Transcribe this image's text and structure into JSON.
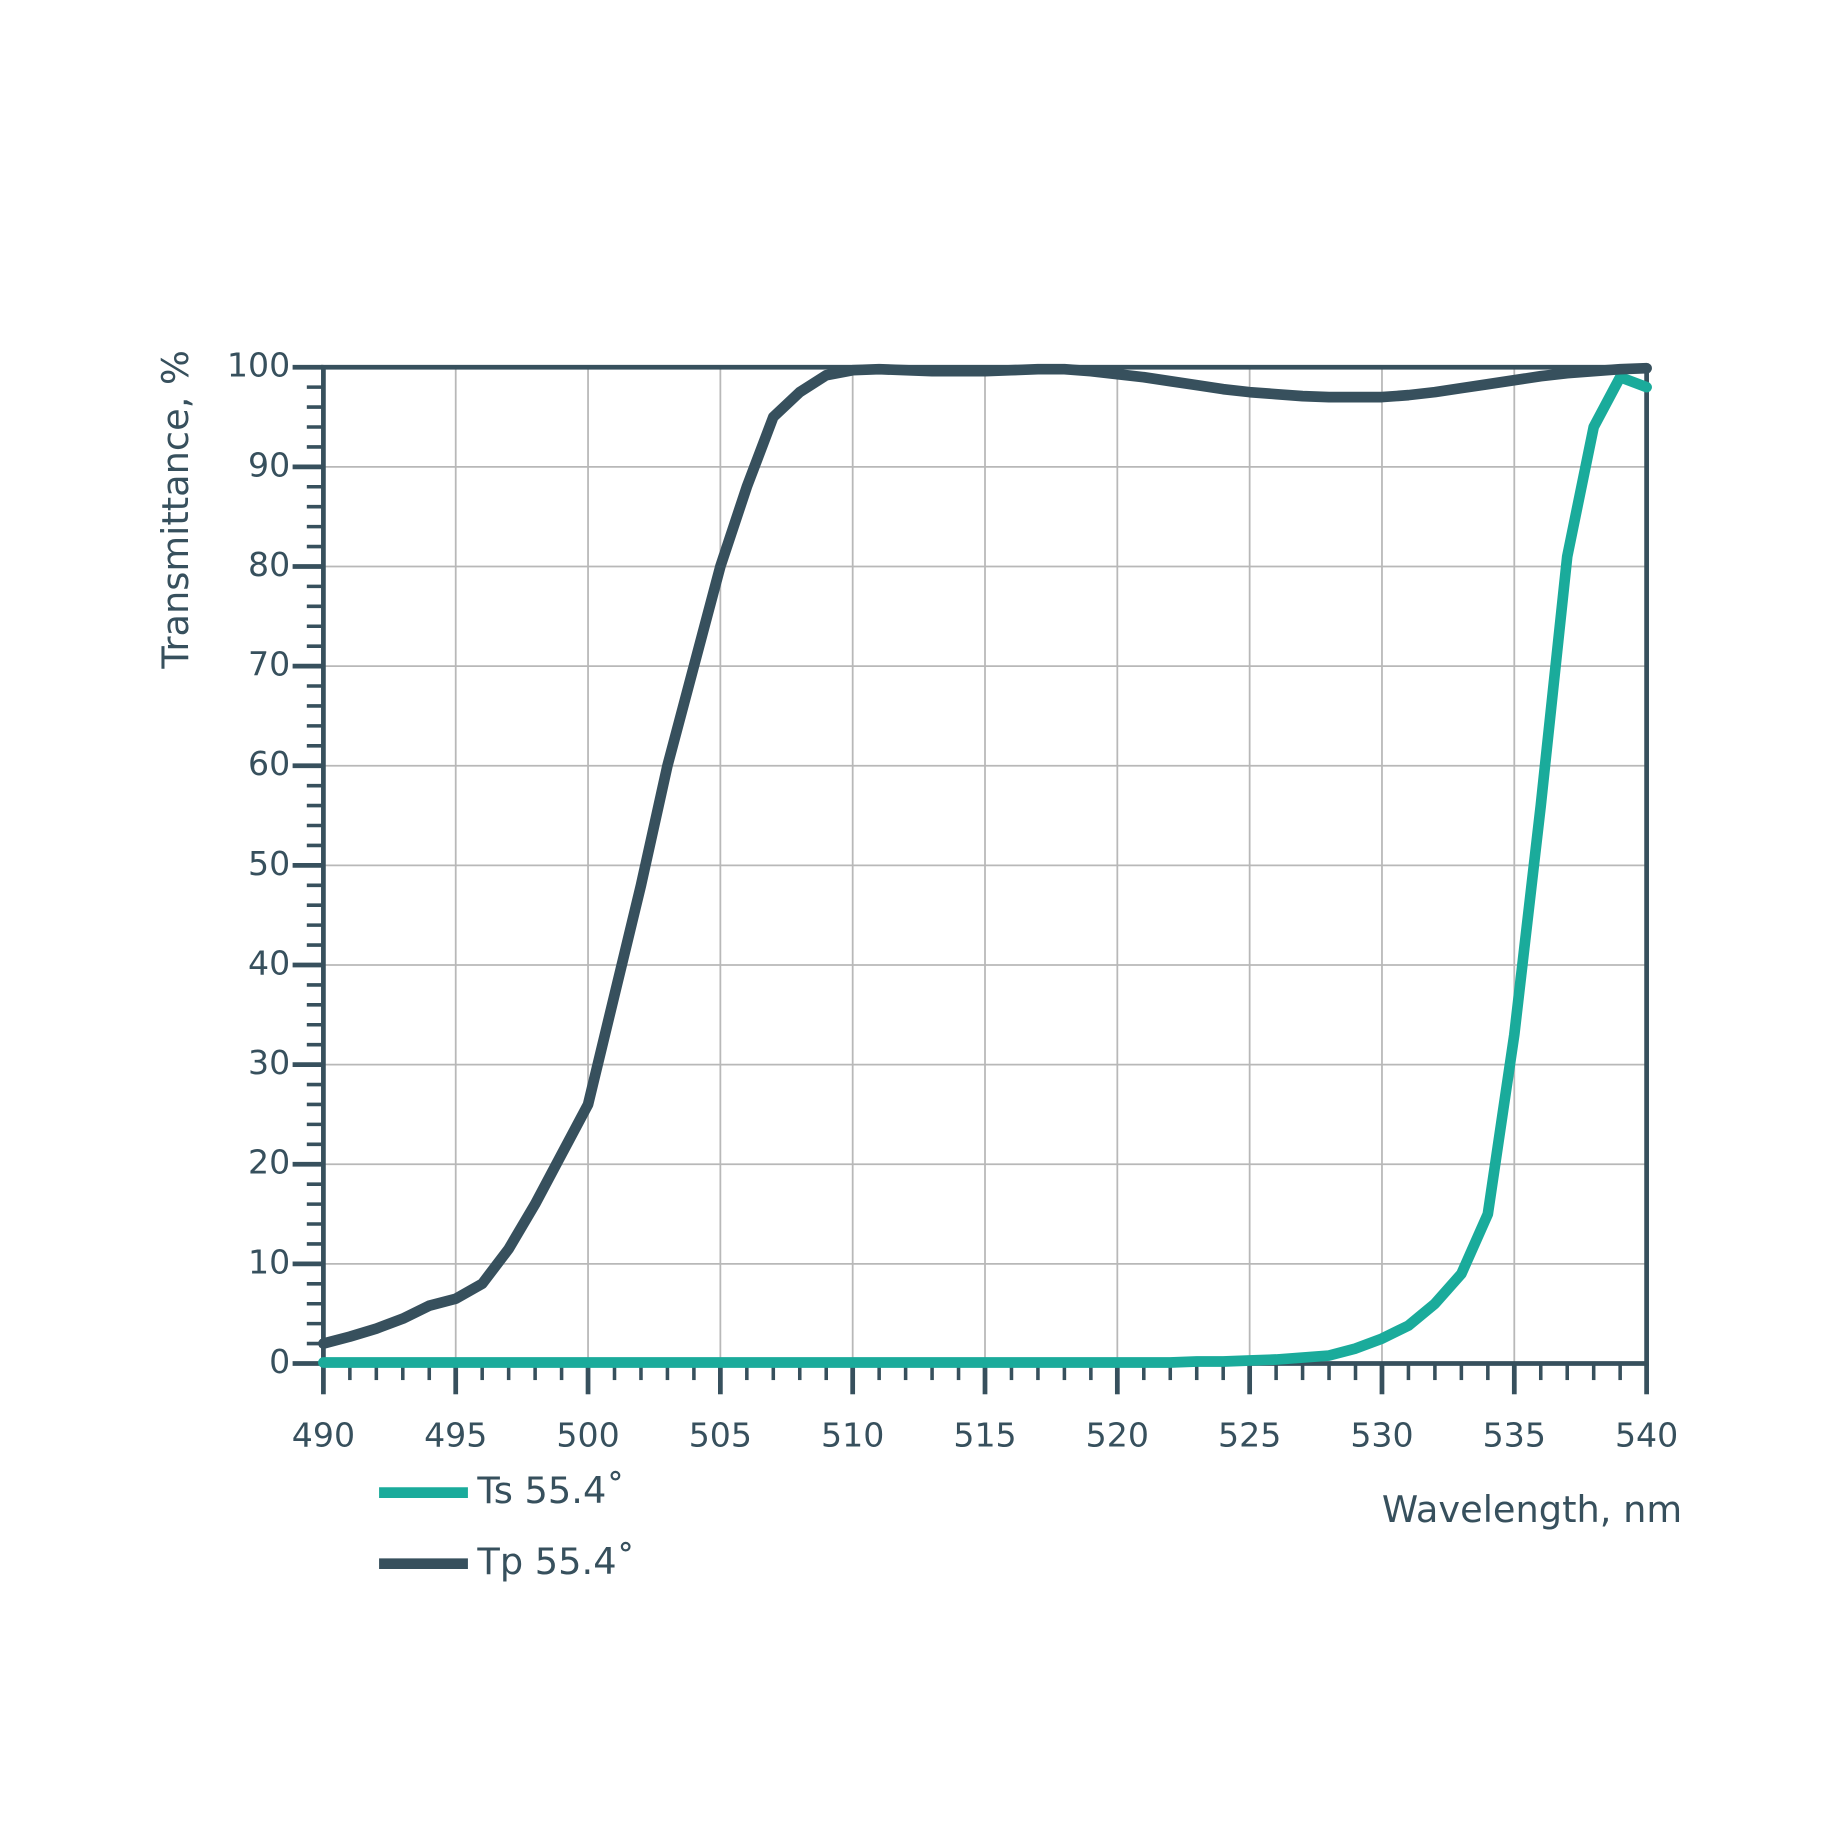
{
  "chart_data": {
    "type": "line",
    "x_label": "Wavelength, nm",
    "y_label": "Transmittance, %",
    "x": [
      490,
      491,
      492,
      493,
      494,
      495,
      496,
      497,
      498,
      499,
      500,
      501,
      502,
      503,
      504,
      505,
      506,
      507,
      508,
      509,
      510,
      511,
      512,
      513,
      514,
      515,
      516,
      517,
      518,
      519,
      520,
      521,
      522,
      523,
      524,
      525,
      526,
      527,
      528,
      529,
      530,
      531,
      532,
      533,
      534,
      535,
      536,
      537,
      538,
      539,
      540
    ],
    "series": [
      {
        "name": "Ts 55.4˚",
        "color": "#1aab9b",
        "values": [
          0.1,
          0.1,
          0.1,
          0.1,
          0.1,
          0.1,
          0.1,
          0.1,
          0.1,
          0.1,
          0.1,
          0.1,
          0.1,
          0.1,
          0.1,
          0.1,
          0.1,
          0.1,
          0.1,
          0.1,
          0.1,
          0.1,
          0.1,
          0.1,
          0.1,
          0.1,
          0.1,
          0.1,
          0.1,
          0.1,
          0.1,
          0.1,
          0.1,
          0.2,
          0.2,
          0.3,
          0.4,
          0.6,
          0.8,
          1.5,
          2.5,
          3.8,
          6,
          9,
          15,
          33,
          56,
          81,
          94,
          99,
          98
        ]
      },
      {
        "name": "Tp 55.4˚",
        "color": "#37505d",
        "values": [
          2,
          2.7,
          3.5,
          4.5,
          5.8,
          6.5,
          8,
          11.5,
          16,
          21,
          26,
          37,
          48,
          60,
          70,
          80,
          88,
          95,
          97.5,
          99.2,
          99.7,
          99.8,
          99.7,
          99.6,
          99.6,
          99.6,
          99.7,
          99.8,
          99.8,
          99.6,
          99.3,
          99,
          98.6,
          98.2,
          97.8,
          97.5,
          97.3,
          97.1,
          97,
          97,
          97,
          97.2,
          97.5,
          97.9,
          98.3,
          98.7,
          99.1,
          99.4,
          99.6,
          99.8,
          99.9
        ]
      }
    ],
    "xlim": [
      490,
      540
    ],
    "xticks": [
      490,
      495,
      500,
      505,
      510,
      515,
      520,
      525,
      530,
      535,
      540
    ],
    "ylim": [
      0,
      100
    ],
    "yticks": [
      0,
      10,
      20,
      30,
      40,
      50,
      60,
      70,
      80,
      90,
      100
    ],
    "grid": true,
    "legend": "bottom-left"
  }
}
